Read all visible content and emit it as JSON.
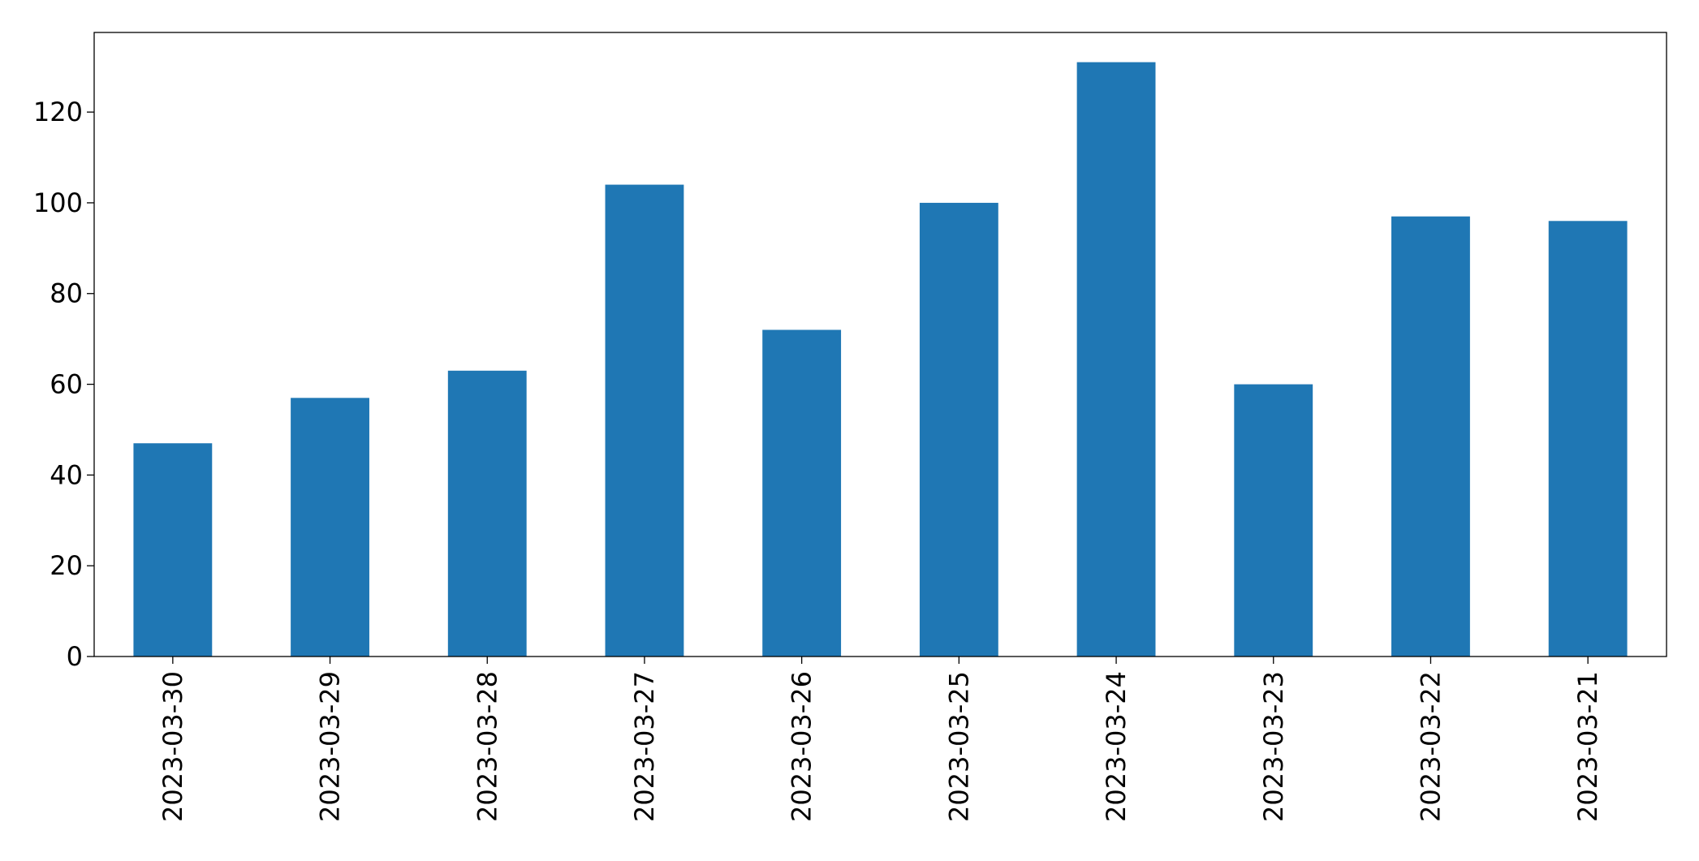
{
  "chart_data": {
    "type": "bar",
    "categories": [
      "2023-03-30",
      "2023-03-29",
      "2023-03-28",
      "2023-03-27",
      "2023-03-26",
      "2023-03-25",
      "2023-03-24",
      "2023-03-23",
      "2023-03-22",
      "2023-03-21"
    ],
    "values": [
      47,
      57,
      63,
      104,
      72,
      100,
      131,
      60,
      97,
      96
    ],
    "color": "#1f77b4",
    "ylim": [
      0,
      137.55
    ],
    "yticks": [
      0,
      20,
      40,
      60,
      80,
      100,
      120
    ],
    "grid": false
  }
}
